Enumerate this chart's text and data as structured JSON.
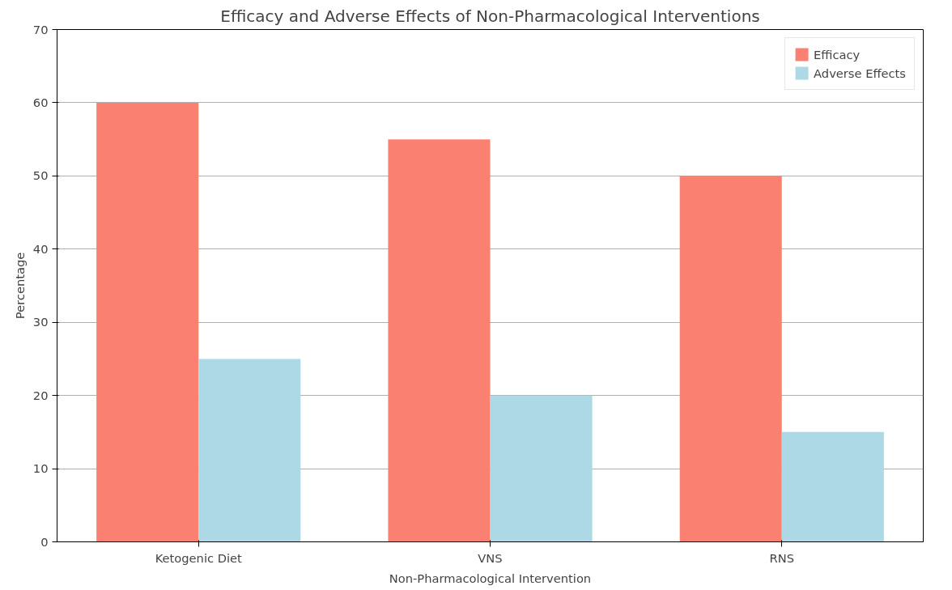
{
  "chart_data": {
    "type": "bar",
    "title": "Efficacy and Adverse Effects of Non-Pharmacological Interventions",
    "xlabel": "Non-Pharmacological Intervention",
    "ylabel": "Percentage",
    "categories": [
      "Ketogenic Diet",
      "VNS",
      "RNS"
    ],
    "series": [
      {
        "name": "Efficacy",
        "color": "#fa8072",
        "values": [
          60,
          55,
          50
        ]
      },
      {
        "name": "Adverse Effects",
        "color": "#add8e6",
        "values": [
          25,
          20,
          15
        ]
      }
    ],
    "ylim": [
      0,
      70
    ],
    "yticks": [
      0,
      10,
      20,
      30,
      40,
      50,
      60,
      70
    ],
    "grid": "y",
    "legend": "top right"
  }
}
